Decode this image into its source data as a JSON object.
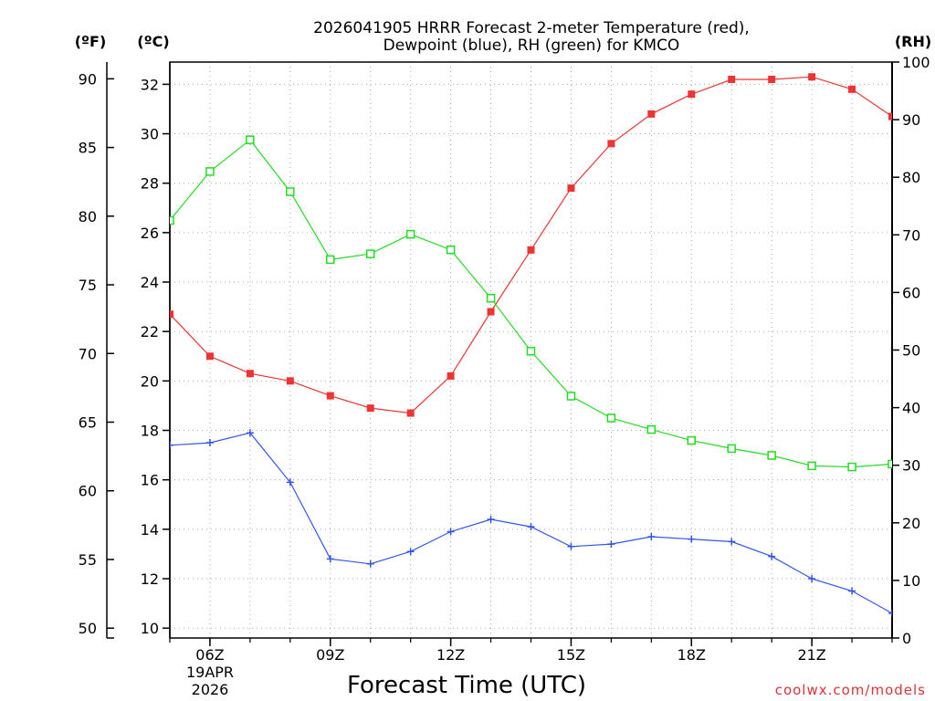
{
  "chart_data": {
    "type": "line",
    "title_line1": "2026041905 HRRR Forecast 2-meter Temperature (red),",
    "title_line2": "Dewpoint (blue), RH (green) for KMCO",
    "xlabel": "Forecast Time (UTC)",
    "credit": "coolwx.com/models",
    "units": {
      "fahrenheit": "(ºF)",
      "celsius": "(ºC)",
      "rh": "(RH)"
    },
    "x": [
      5,
      6,
      7,
      8,
      9,
      10,
      11,
      12,
      13,
      14,
      15,
      16,
      17,
      18,
      19,
      20,
      21,
      22,
      23
    ],
    "xlim": [
      5,
      23
    ],
    "x_ticks": [
      {
        "x": 6,
        "label": "06Z"
      },
      {
        "x": 9,
        "label": "09Z"
      },
      {
        "x": 12,
        "label": "12Z"
      },
      {
        "x": 15,
        "label": "15Z"
      },
      {
        "x": 18,
        "label": "18Z"
      },
      {
        "x": 21,
        "label": "21Z"
      }
    ],
    "date_label": [
      "19APR",
      "2026"
    ],
    "celsius_axis": {
      "ylim": [
        9.6,
        32.9
      ],
      "ticks": [
        10,
        12,
        14,
        16,
        18,
        20,
        22,
        24,
        26,
        28,
        30,
        32
      ]
    },
    "fahrenheit_axis": {
      "ticks": [
        50,
        55,
        60,
        65,
        70,
        75,
        80,
        85,
        90
      ]
    },
    "rh_axis": {
      "ylim": [
        0,
        100
      ],
      "ticks": [
        0,
        10,
        20,
        30,
        40,
        50,
        60,
        70,
        80,
        90,
        100
      ]
    },
    "grid": true,
    "series": [
      {
        "name": "2-meter Temperature",
        "axis": "celsius",
        "color": "#ee3333",
        "marker": "filled-square",
        "values": [
          22.7,
          21.0,
          20.3,
          20.0,
          19.4,
          18.9,
          18.7,
          20.2,
          22.8,
          25.3,
          27.8,
          29.6,
          30.8,
          31.6,
          32.2,
          32.2,
          32.3,
          31.8,
          30.7
        ]
      },
      {
        "name": "Dewpoint",
        "axis": "celsius",
        "color": "#3355ee",
        "marker": "plus",
        "values": [
          17.4,
          17.5,
          17.9,
          15.9,
          12.8,
          12.6,
          13.1,
          13.9,
          14.4,
          14.1,
          13.3,
          13.4,
          13.7,
          13.6,
          13.5,
          12.9,
          12.0,
          11.5,
          10.6
        ]
      },
      {
        "name": "Relative Humidity",
        "axis": "rh",
        "color": "#22dd22",
        "marker": "open-square",
        "values": [
          72.5,
          81.0,
          86.5,
          77.5,
          65.7,
          66.7,
          70.1,
          67.4,
          59.0,
          49.8,
          42.0,
          38.2,
          36.2,
          34.3,
          32.9,
          31.7,
          29.9,
          29.7,
          30.2
        ]
      }
    ]
  }
}
